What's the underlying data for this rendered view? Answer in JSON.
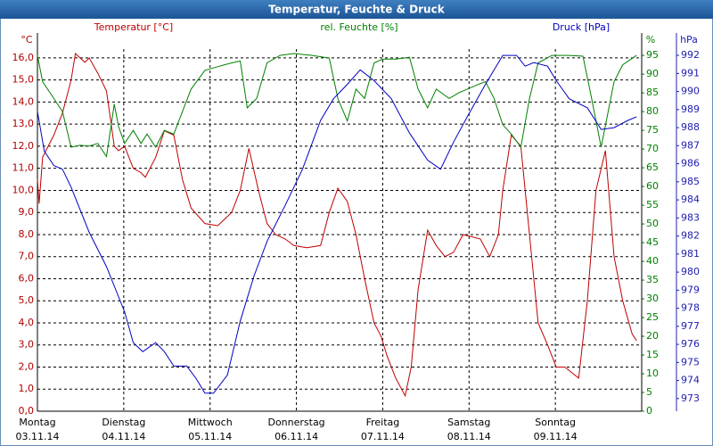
{
  "chart_data": {
    "type": "line",
    "title": "Temperatur, Feuchte & Druck",
    "ylabel": "°C",
    "y2label": "%",
    "y3label": "hPa",
    "xlim": [
      0,
      7
    ],
    "xticks": [
      0,
      1,
      2,
      3,
      4,
      5,
      6
    ],
    "day_labels": [
      "Montag",
      "Dienstag",
      "Mittwoch",
      "Donnerstag",
      "Freitag",
      "Samstag",
      "Sonntag"
    ],
    "date_labels": [
      "03.11.14",
      "04.11.14",
      "05.11.14",
      "06.11.14",
      "07.11.14",
      "08.11.14",
      "09.11.14"
    ],
    "ylim": [
      0,
      16.4
    ],
    "yticks": [
      {
        "value": 0,
        "label": "0,0"
      },
      {
        "value": 1,
        "label": "1,0"
      },
      {
        "value": 2,
        "label": "2,0"
      },
      {
        "value": 3,
        "label": "3,0"
      },
      {
        "value": 4,
        "label": "4,0"
      },
      {
        "value": 5,
        "label": "5,0"
      },
      {
        "value": 6,
        "label": "6,0"
      },
      {
        "value": 7,
        "label": "7,0"
      },
      {
        "value": 8,
        "label": "8,0"
      },
      {
        "value": 9,
        "label": "9,0"
      },
      {
        "value": 10,
        "label": "10,0"
      },
      {
        "value": 11,
        "label": "11,0"
      },
      {
        "value": 12,
        "label": "12,0"
      },
      {
        "value": 13,
        "label": "13,0"
      },
      {
        "value": 14,
        "label": "14,0"
      },
      {
        "value": 15,
        "label": "15,0"
      },
      {
        "value": 16,
        "label": "16,0"
      }
    ],
    "y2lim": [
      0,
      96.7
    ],
    "y2ticks": [
      0,
      5,
      10,
      15,
      20,
      25,
      30,
      35,
      40,
      45,
      50,
      55,
      60,
      65,
      70,
      75,
      80,
      85,
      90,
      95
    ],
    "y3lim": [
      972.3,
      992.35
    ],
    "y3ticks": [
      973,
      974,
      975,
      976,
      977,
      978,
      979,
      980,
      981,
      982,
      983,
      984,
      985,
      986,
      987,
      988,
      989,
      990,
      991,
      992
    ],
    "grid": true,
    "series": [
      {
        "name": "Temperatur [°C]",
        "color": "#c00000",
        "axis": "y",
        "x": [
          0,
          0.02,
          0.06,
          0.19,
          0.29,
          0.39,
          0.44,
          0.55,
          0.6,
          0.7,
          0.8,
          0.89,
          0.94,
          1.01,
          1.11,
          1.2,
          1.25,
          1.37,
          1.47,
          1.58,
          1.68,
          1.78,
          1.94,
          2.09,
          2.25,
          2.35,
          2.45,
          2.56,
          2.66,
          2.76,
          2.87,
          2.97,
          3.12,
          3.28,
          3.38,
          3.48,
          3.59,
          3.69,
          3.79,
          3.9,
          3.98,
          4.05,
          4.15,
          4.26,
          4.33,
          4.41,
          4.52,
          4.62,
          4.72,
          4.82,
          4.93,
          5.03,
          5.13,
          5.24,
          5.34,
          5.39,
          5.49,
          5.6,
          5.7,
          5.8,
          5.91,
          6.01,
          6.11,
          6.27,
          6.37,
          6.47,
          6.58,
          6.68,
          6.78,
          6.89,
          6.94
        ],
        "values": [
          10.5,
          9.4,
          11.5,
          12.5,
          13.5,
          15,
          16.2,
          15.8,
          16,
          15.3,
          14.5,
          12,
          11.8,
          12,
          11,
          10.8,
          10.6,
          11.5,
          12.7,
          12.5,
          10.5,
          9.2,
          8.5,
          8.4,
          9,
          10,
          11.9,
          10,
          8.5,
          8,
          7.8,
          7.5,
          7.4,
          7.5,
          9,
          10.1,
          9.5,
          8,
          6,
          4,
          3.4,
          2.5,
          1.5,
          0.7,
          2,
          5.5,
          8.2,
          7.5,
          7,
          7.2,
          8,
          7.9,
          7.8,
          7,
          8,
          10,
          12.5,
          12,
          8,
          4,
          3,
          2,
          2,
          1.5,
          5,
          10,
          11.8,
          7,
          5,
          3.5,
          3.2
        ]
      },
      {
        "name": "rel. Feuchte [%]",
        "color": "#008000",
        "axis": "y2",
        "x": [
          0,
          0.06,
          0.19,
          0.29,
          0.39,
          0.49,
          0.6,
          0.7,
          0.8,
          0.89,
          0.94,
          1.01,
          1.11,
          1.2,
          1.27,
          1.37,
          1.47,
          1.58,
          1.68,
          1.78,
          1.94,
          2.09,
          2.25,
          2.35,
          2.43,
          2.54,
          2.66,
          2.81,
          2.97,
          3.18,
          3.38,
          3.48,
          3.59,
          3.69,
          3.79,
          3.9,
          4.0,
          4.15,
          4.31,
          4.41,
          4.52,
          4.62,
          4.77,
          4.88,
          4.98,
          5.08,
          5.19,
          5.29,
          5.39,
          5.49,
          5.6,
          5.7,
          5.8,
          5.96,
          6.16,
          6.32,
          6.42,
          6.53,
          6.68,
          6.78,
          6.94
        ],
        "values": [
          95,
          88,
          83.5,
          80,
          70.5,
          71,
          70.8,
          71.5,
          68,
          82,
          76,
          71.5,
          75,
          71.5,
          74,
          70.5,
          75,
          74,
          80,
          86,
          91,
          92,
          93,
          93.5,
          81,
          83.5,
          93,
          95,
          95.5,
          95,
          94.3,
          83.5,
          77.5,
          86,
          83.5,
          93,
          94,
          94,
          94.5,
          86,
          81,
          86,
          83.5,
          85,
          86,
          87,
          88,
          83.5,
          76.5,
          74,
          70.5,
          83.5,
          93,
          95,
          95,
          94.8,
          83.5,
          70.5,
          88,
          92.5,
          95
        ]
      },
      {
        "name": "Druck [hPa]",
        "color": "#0000c0",
        "axis": "y3",
        "x": [
          0,
          0.08,
          0.19,
          0.29,
          0.39,
          0.6,
          0.8,
          1.01,
          1.11,
          1.22,
          1.37,
          1.47,
          1.58,
          1.73,
          1.84,
          1.94,
          2.04,
          2.2,
          2.35,
          2.51,
          2.66,
          2.87,
          3.07,
          3.28,
          3.43,
          3.59,
          3.74,
          3.9,
          4.1,
          4.31,
          4.52,
          4.67,
          4.82,
          4.98,
          5.19,
          5.39,
          5.55,
          5.65,
          5.75,
          5.91,
          6.01,
          6.16,
          6.37,
          6.53,
          6.68,
          6.84,
          6.94
        ],
        "values": [
          988.9,
          986.7,
          985.9,
          985.7,
          984.7,
          982.2,
          980.3,
          977.8,
          976.1,
          975.6,
          976.1,
          975.6,
          974.8,
          974.8,
          974.1,
          973.3,
          973.3,
          974.3,
          977.3,
          979.8,
          981.7,
          983.7,
          985.7,
          988.4,
          989.6,
          990.4,
          991.2,
          990.6,
          989.6,
          987.7,
          986.2,
          985.7,
          987.2,
          988.6,
          990.4,
          992,
          992,
          991.4,
          991.6,
          991.4,
          990.6,
          989.6,
          989.1,
          987.9,
          988,
          988.4,
          988.6
        ]
      }
    ]
  }
}
